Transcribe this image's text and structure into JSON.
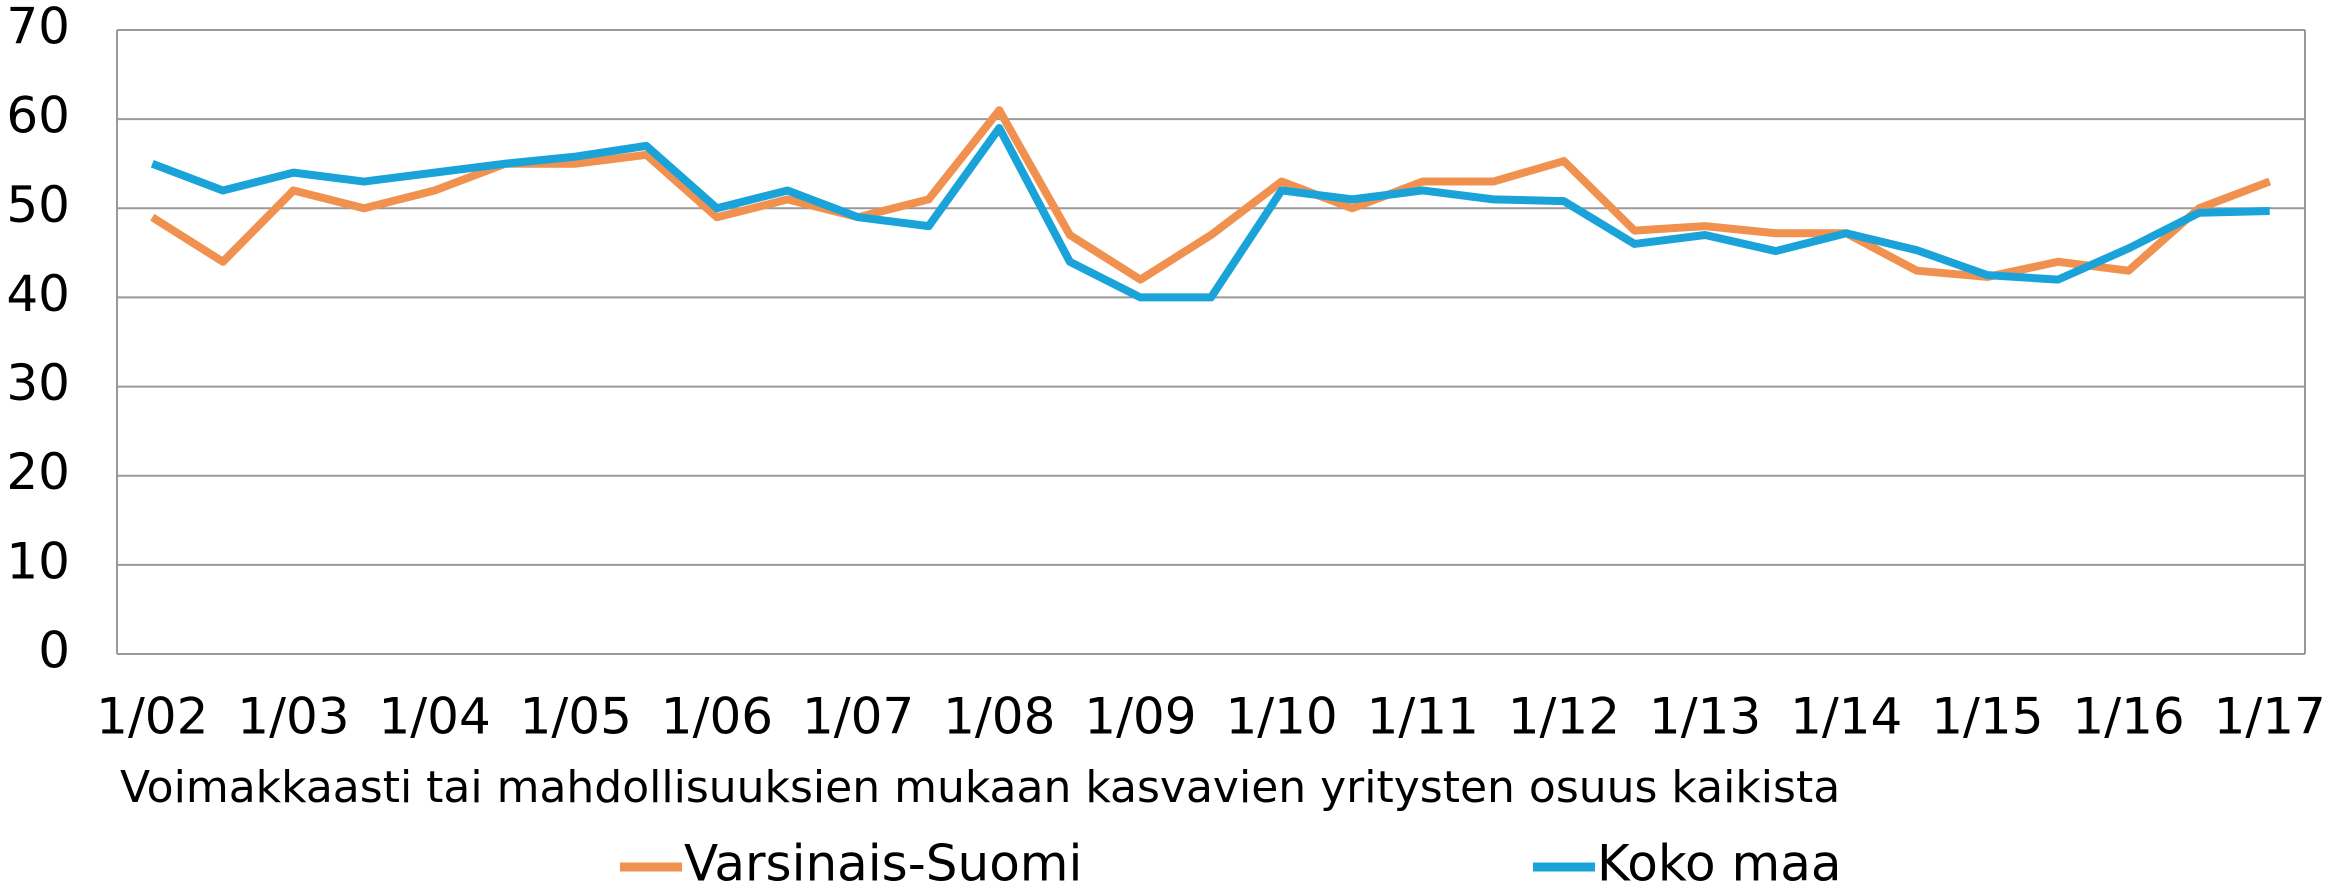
{
  "chart_data": {
    "type": "line",
    "categories": [
      "1/02",
      null,
      "1/03",
      null,
      "1/04",
      null,
      "1/05",
      null,
      "1/06",
      null,
      "1/07",
      null,
      "1/08",
      null,
      "1/09",
      null,
      "1/10",
      null,
      "1/11",
      null,
      "1/12",
      null,
      "1/13",
      null,
      "1/14",
      null,
      "1/15",
      null,
      "1/16",
      null,
      "1/17"
    ],
    "series": [
      {
        "name": "Varsinais-Suomi",
        "color": "#f0914f",
        "values": [
          49,
          44,
          52,
          50,
          52,
          55,
          55,
          56,
          49,
          51,
          49,
          51,
          61,
          47,
          42,
          47,
          53,
          50,
          53,
          53,
          55.3,
          47.5,
          48,
          47.2,
          47.2,
          43,
          42.3,
          44,
          43,
          50,
          53
        ]
      },
      {
        "name": "Koko maa",
        "color": "#1aa3d9",
        "values": [
          55,
          52,
          54,
          53,
          54,
          55,
          55.8,
          57,
          50,
          52,
          49,
          48,
          59,
          44,
          40,
          40,
          52,
          51,
          52,
          51,
          50.8,
          46,
          47,
          45.2,
          47.2,
          45.3,
          42.5,
          42,
          45.5,
          49.5,
          49.7
        ]
      }
    ],
    "x_label": "Voimakkaasti tai mahdollisuuksien mukaan kasvavien yritysten osuus kaikista",
    "ylim": [
      0,
      70
    ],
    "yticks": [
      0,
      10,
      20,
      30,
      40,
      50,
      60,
      70
    ],
    "grid": true
  }
}
